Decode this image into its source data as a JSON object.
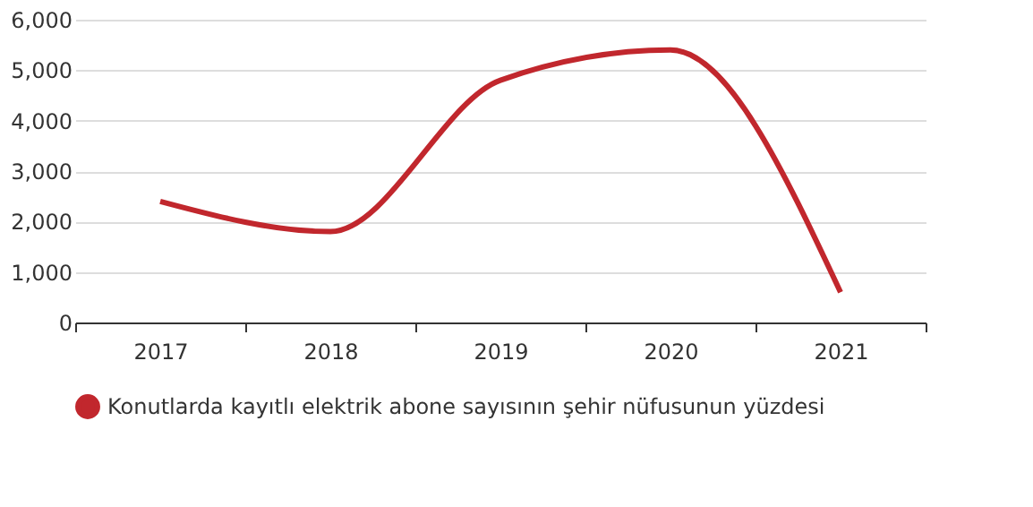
{
  "chart_data": {
    "type": "line",
    "categories": [
      "2017",
      "2018",
      "2019",
      "2020",
      "2021"
    ],
    "series": [
      {
        "name": "Konutlarda kayıtlı elektrik abone sayısının şehir nüfusunun yüzdesi",
        "color": "#c1272d",
        "values": [
          2400,
          1800,
          4800,
          5400,
          600
        ]
      }
    ],
    "ylim": [
      0,
      6000
    ],
    "yticks": [
      {
        "value": 0,
        "label": "0"
      },
      {
        "value": 1000,
        "label": "1,000"
      },
      {
        "value": 2000,
        "label": "2,000"
      },
      {
        "value": 3000,
        "label": "3,000"
      },
      {
        "value": 4000,
        "label": "4,000"
      },
      {
        "value": 5000,
        "label": "5,000"
      },
      {
        "value": 6000,
        "label": "6,000"
      }
    ],
    "grid": "y",
    "legend": "bottom",
    "marker": "none",
    "line_style": "solid"
  }
}
